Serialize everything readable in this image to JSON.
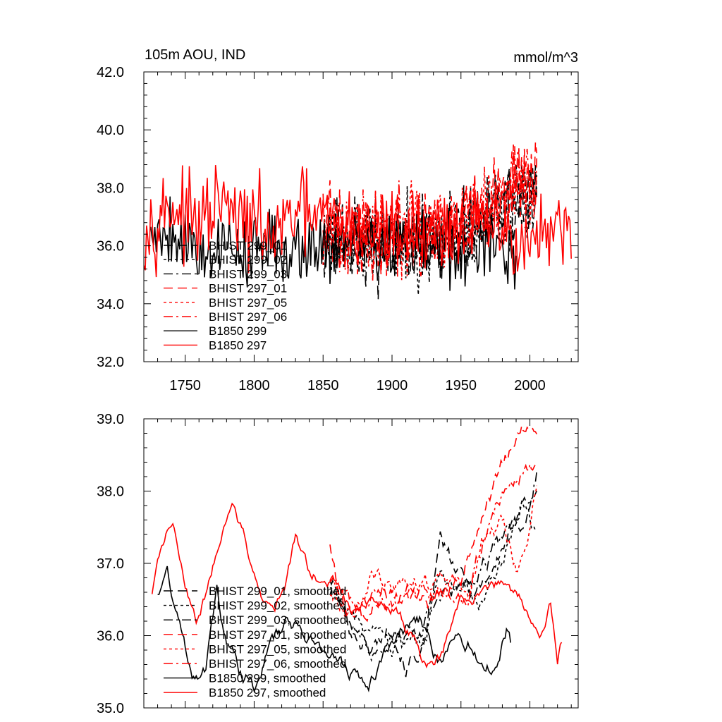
{
  "chart_data": [
    {
      "type": "line",
      "title": "105m AOU, IND",
      "units": "mmol/m^3",
      "xlabel": "",
      "ylabel": "",
      "xlim": [
        1720,
        2035
      ],
      "ylim": [
        32.0,
        42.0
      ],
      "x_ticks": [
        1750,
        1800,
        1850,
        1900,
        1950,
        2000
      ],
      "x_tick_labels": [
        "1750",
        "1800",
        "1850",
        "1900",
        "1950",
        "2000"
      ],
      "y_ticks": [
        32.0,
        34.0,
        36.0,
        38.0,
        40.0,
        42.0
      ],
      "y_tick_labels": [
        "32.0",
        "34.0",
        "36.0",
        "38.0",
        "40.0",
        "42.0"
      ],
      "legend_position": "lower-left",
      "series": [
        {
          "name": "BHIST 299_01",
          "color": "#000000",
          "dash": "long-dash",
          "x_start": 1850,
          "x_end": 2005,
          "anchors": [
            [
              1850,
              36.4
            ],
            [
              1880,
              36.0
            ],
            [
              1910,
              36.2
            ],
            [
              1940,
              36.3
            ],
            [
              1970,
              36.9
            ],
            [
              1990,
              37.6
            ],
            [
              2005,
              38.0
            ]
          ],
          "noise": 1.0,
          "seed": 11
        },
        {
          "name": "BHIST 299_02",
          "color": "#000000",
          "dash": "short-dash",
          "x_start": 1850,
          "x_end": 2005,
          "anchors": [
            [
              1850,
              36.3
            ],
            [
              1880,
              35.9
            ],
            [
              1910,
              36.1
            ],
            [
              1940,
              36.2
            ],
            [
              1970,
              36.8
            ],
            [
              1990,
              37.5
            ],
            [
              2005,
              37.9
            ]
          ],
          "noise": 1.0,
          "seed": 23
        },
        {
          "name": "BHIST 299_03",
          "color": "#000000",
          "dash": "dash-dot",
          "x_start": 1850,
          "x_end": 2005,
          "anchors": [
            [
              1850,
              36.5
            ],
            [
              1880,
              36.0
            ],
            [
              1910,
              36.2
            ],
            [
              1940,
              36.4
            ],
            [
              1970,
              37.0
            ],
            [
              1990,
              37.7
            ],
            [
              2005,
              37.8
            ]
          ],
          "noise": 1.0,
          "seed": 37
        },
        {
          "name": "BHIST 297_01",
          "color": "#ff0000",
          "dash": "long-dash",
          "x_start": 1850,
          "x_end": 2005,
          "anchors": [
            [
              1850,
              36.9
            ],
            [
              1880,
              36.3
            ],
            [
              1910,
              36.4
            ],
            [
              1940,
              36.5
            ],
            [
              1970,
              37.5
            ],
            [
              1990,
              38.3
            ],
            [
              2005,
              38.4
            ]
          ],
          "noise": 1.0,
          "seed": 41
        },
        {
          "name": "BHIST 297_05",
          "color": "#ff0000",
          "dash": "short-dash",
          "x_start": 1850,
          "x_end": 2005,
          "anchors": [
            [
              1850,
              36.8
            ],
            [
              1880,
              36.4
            ],
            [
              1910,
              36.5
            ],
            [
              1940,
              36.6
            ],
            [
              1970,
              37.4
            ],
            [
              1990,
              37.6
            ],
            [
              2005,
              38.0
            ]
          ],
          "noise": 1.0,
          "seed": 53
        },
        {
          "name": "BHIST 297_06",
          "color": "#ff0000",
          "dash": "dash-dot",
          "x_start": 1850,
          "x_end": 2005,
          "anchors": [
            [
              1850,
              36.8
            ],
            [
              1880,
              36.3
            ],
            [
              1910,
              36.4
            ],
            [
              1940,
              36.6
            ],
            [
              1970,
              37.4
            ],
            [
              1990,
              38.4
            ],
            [
              2005,
              38.6
            ]
          ],
          "noise": 1.0,
          "seed": 67
        },
        {
          "name": "B1850 299",
          "color": "#000000",
          "dash": "solid",
          "x_start": 1725,
          "x_end": 1990,
          "anchors": [
            [
              1725,
              36.5
            ],
            [
              1740,
              36.6
            ],
            [
              1760,
              35.8
            ],
            [
              1780,
              36.0
            ],
            [
              1800,
              35.8
            ],
            [
              1830,
              36.0
            ],
            [
              1860,
              36.1
            ],
            [
              1900,
              36.0
            ],
            [
              1940,
              35.9
            ],
            [
              1960,
              35.6
            ],
            [
              1980,
              36.0
            ],
            [
              1990,
              35.8
            ]
          ],
          "noise": 0.9,
          "seed": 79
        },
        {
          "name": "B1850 297",
          "color": "#ff0000",
          "dash": "solid",
          "x_start": 1720,
          "x_end": 2030,
          "anchors": [
            [
              1720,
              36.6
            ],
            [
              1740,
              37.4
            ],
            [
              1760,
              36.6
            ],
            [
              1775,
              37.5
            ],
            [
              1790,
              36.8
            ],
            [
              1805,
              36.7
            ],
            [
              1815,
              36.2
            ],
            [
              1830,
              37.2
            ],
            [
              1850,
              36.9
            ],
            [
              1880,
              36.5
            ],
            [
              1900,
              36.6
            ],
            [
              1940,
              36.6
            ],
            [
              1975,
              36.6
            ],
            [
              2000,
              36.1
            ],
            [
              2015,
              36.4
            ],
            [
              2030,
              36.1
            ]
          ],
          "noise": 1.0,
          "seed": 97
        }
      ]
    },
    {
      "type": "line",
      "title": "",
      "xlabel": "",
      "ylabel": "",
      "xlim": [
        1720,
        2035
      ],
      "ylim": [
        35.0,
        39.0
      ],
      "x_ticks": [
        1750,
        1800,
        1850,
        1900,
        1950,
        2000
      ],
      "x_tick_labels": [],
      "y_ticks": [
        35.0,
        36.0,
        37.0,
        38.0,
        39.0
      ],
      "y_tick_labels": [
        "35.0",
        "36.0",
        "37.0",
        "38.0",
        "39.0"
      ],
      "legend_position": "lower-left",
      "series": [
        {
          "name": "BHIST 299_01, smoothed",
          "color": "#000000",
          "dash": "long-dash",
          "x_start": 1855,
          "x_end": 2005,
          "anchors": [
            [
              1855,
              36.8
            ],
            [
              1870,
              36.1
            ],
            [
              1885,
              35.8
            ],
            [
              1900,
              36.2
            ],
            [
              1910,
              35.6
            ],
            [
              1925,
              35.9
            ],
            [
              1935,
              37.3
            ],
            [
              1945,
              36.9
            ],
            [
              1960,
              36.6
            ],
            [
              1975,
              37.0
            ],
            [
              1985,
              37.4
            ],
            [
              1995,
              37.6
            ],
            [
              2000,
              37.8
            ],
            [
              2005,
              38.1
            ]
          ],
          "noise": 0.15,
          "seed": 101
        },
        {
          "name": "BHIST 299_02, smoothed",
          "color": "#000000",
          "dash": "short-dash",
          "x_start": 1855,
          "x_end": 2005,
          "anchors": [
            [
              1855,
              36.7
            ],
            [
              1870,
              36.3
            ],
            [
              1885,
              35.9
            ],
            [
              1900,
              35.8
            ],
            [
              1910,
              35.7
            ],
            [
              1925,
              36.0
            ],
            [
              1935,
              36.9
            ],
            [
              1950,
              36.6
            ],
            [
              1965,
              36.5
            ],
            [
              1980,
              37.1
            ],
            [
              1995,
              37.9
            ],
            [
              2005,
              37.3
            ]
          ],
          "noise": 0.15,
          "seed": 103
        },
        {
          "name": "BHIST 299_03, smoothed",
          "color": "#000000",
          "dash": "dash-dot",
          "x_start": 1855,
          "x_end": 2005,
          "anchors": [
            [
              1855,
              36.6
            ],
            [
              1870,
              36.2
            ],
            [
              1885,
              35.8
            ],
            [
              1900,
              36.1
            ],
            [
              1915,
              36.0
            ],
            [
              1930,
              36.3
            ],
            [
              1945,
              36.6
            ],
            [
              1960,
              36.8
            ],
            [
              1975,
              37.2
            ],
            [
              1990,
              37.6
            ],
            [
              2005,
              38.3
            ]
          ],
          "noise": 0.15,
          "seed": 107
        },
        {
          "name": "BHIST 297_01, smoothed",
          "color": "#ff0000",
          "dash": "long-dash",
          "x_start": 1855,
          "x_end": 2005,
          "anchors": [
            [
              1855,
              37.3
            ],
            [
              1865,
              36.4
            ],
            [
              1880,
              36.2
            ],
            [
              1895,
              36.6
            ],
            [
              1910,
              36.6
            ],
            [
              1930,
              36.5
            ],
            [
              1950,
              36.8
            ],
            [
              1960,
              37.4
            ],
            [
              1970,
              37.9
            ],
            [
              1985,
              38.5
            ],
            [
              1995,
              38.8
            ],
            [
              2005,
              38.7
            ]
          ],
          "noise": 0.15,
          "seed": 109
        },
        {
          "name": "BHIST 297_05, smoothed",
          "color": "#ff0000",
          "dash": "short-dash",
          "x_start": 1855,
          "x_end": 2005,
          "anchors": [
            [
              1855,
              36.6
            ],
            [
              1870,
              36.4
            ],
            [
              1885,
              36.8
            ],
            [
              1900,
              36.6
            ],
            [
              1920,
              36.8
            ],
            [
              1940,
              36.7
            ],
            [
              1955,
              36.7
            ],
            [
              1965,
              37.3
            ],
            [
              1980,
              37.6
            ],
            [
              1990,
              37.0
            ],
            [
              1998,
              37.2
            ],
            [
              2005,
              38.0
            ]
          ],
          "noise": 0.15,
          "seed": 113
        },
        {
          "name": "BHIST 297_06, smoothed",
          "color": "#ff0000",
          "dash": "dash-dot",
          "x_start": 1855,
          "x_end": 2005,
          "anchors": [
            [
              1855,
              36.8
            ],
            [
              1870,
              36.5
            ],
            [
              1885,
              36.6
            ],
            [
              1900,
              36.5
            ],
            [
              1920,
              36.6
            ],
            [
              1940,
              36.6
            ],
            [
              1955,
              36.6
            ],
            [
              1965,
              37.2
            ],
            [
              1975,
              37.8
            ],
            [
              1985,
              38.1
            ],
            [
              1995,
              38.3
            ],
            [
              2005,
              38.4
            ]
          ],
          "noise": 0.15,
          "seed": 127
        },
        {
          "name": "B1850 299, smoothed",
          "color": "#000000",
          "dash": "solid",
          "x_start": 1730,
          "x_end": 1986,
          "anchors": [
            [
              1730,
              36.6
            ],
            [
              1737,
              36.9
            ],
            [
              1745,
              36.2
            ],
            [
              1755,
              35.5
            ],
            [
              1765,
              35.6
            ],
            [
              1773,
              36.6
            ],
            [
              1780,
              35.9
            ],
            [
              1790,
              35.5
            ],
            [
              1800,
              35.3
            ],
            [
              1810,
              35.8
            ],
            [
              1825,
              36.2
            ],
            [
              1840,
              36.0
            ],
            [
              1855,
              35.7
            ],
            [
              1870,
              35.5
            ],
            [
              1883,
              35.3
            ],
            [
              1900,
              36.0
            ],
            [
              1920,
              36.2
            ],
            [
              1935,
              35.6
            ],
            [
              1945,
              36.0
            ],
            [
              1955,
              35.9
            ],
            [
              1965,
              35.6
            ],
            [
              1975,
              35.6
            ],
            [
              1983,
              36.1
            ],
            [
              1986,
              35.9
            ]
          ],
          "noise": 0.12,
          "seed": 131
        },
        {
          "name": "B1850 297, smoothed",
          "color": "#ff0000",
          "dash": "solid",
          "x_start": 1726,
          "x_end": 2023,
          "anchors": [
            [
              1726,
              36.6
            ],
            [
              1733,
              37.3
            ],
            [
              1741,
              37.6
            ],
            [
              1750,
              36.8
            ],
            [
              1758,
              36.2
            ],
            [
              1767,
              36.7
            ],
            [
              1775,
              37.4
            ],
            [
              1784,
              37.7
            ],
            [
              1794,
              37.3
            ],
            [
              1805,
              36.5
            ],
            [
              1815,
              36.4
            ],
            [
              1822,
              36.6
            ],
            [
              1830,
              37.4
            ],
            [
              1840,
              36.8
            ],
            [
              1855,
              36.8
            ],
            [
              1870,
              36.4
            ],
            [
              1880,
              36.5
            ],
            [
              1900,
              36.4
            ],
            [
              1918,
              35.9
            ],
            [
              1925,
              35.6
            ],
            [
              1935,
              35.7
            ],
            [
              1950,
              36.5
            ],
            [
              1965,
              36.6
            ],
            [
              1977,
              36.7
            ],
            [
              1990,
              36.6
            ],
            [
              2000,
              36.3
            ],
            [
              2007,
              35.9
            ],
            [
              2015,
              36.5
            ],
            [
              2020,
              35.6
            ],
            [
              2023,
              35.9
            ]
          ],
          "noise": 0.1,
          "seed": 137
        }
      ]
    }
  ]
}
